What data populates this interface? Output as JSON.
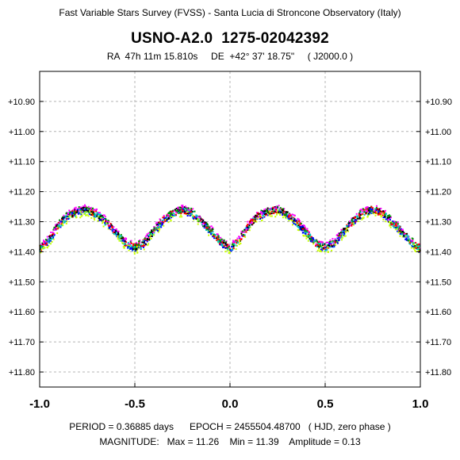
{
  "header": {
    "survey": "Fast Variable Stars Survey (FVSS) - Santa Lucia di Stroncone Observatory (Italy)",
    "star_name": "USNO-A2.0  1275-02042392",
    "coordinates": "RA  47h 11m 15.810s     DE  +42° 37' 18.75\"     ( J2000.0 )"
  },
  "footer": {
    "period_line": "PERIOD = 0.36885 days      EPOCH = 2455504.48700   ( HJD, zero phase )",
    "magnitude_line": "MAGNITUDE:   Max = 11.26    Min = 11.39    Amplitude = 0.13"
  },
  "chart_data": {
    "type": "scatter",
    "title": "USNO-A2.0  1275-02042392",
    "xlabel": "",
    "ylabel": "",
    "xlim": [
      -1.0,
      1.0
    ],
    "ylim": [
      10.8,
      11.85
    ],
    "y_inverted": true,
    "x_ticks": [
      "-1.0",
      "-0.5",
      "0.0",
      "0.5",
      "1.0"
    ],
    "y_ticks": [
      "+10.90",
      "+11.00",
      "+11.10",
      "+11.20",
      "+11.30",
      "+11.40",
      "+11.50",
      "+11.60",
      "+11.70",
      "+11.80"
    ],
    "grid": true,
    "period_days": 0.36885,
    "epoch_hjd": 2455504.487,
    "mag_max": 11.26,
    "mag_min": 11.39,
    "amplitude": 0.13,
    "colors": [
      "#ff0000",
      "#ff00ff",
      "#0000ff",
      "#00c8c8",
      "#c8ff00",
      "#009600",
      "#000000"
    ],
    "phased_curve": {
      "x": [
        -1.0,
        -0.95,
        -0.9,
        -0.85,
        -0.8,
        -0.75,
        -0.7,
        -0.65,
        -0.6,
        -0.55,
        -0.5,
        -0.45,
        -0.4,
        -0.35,
        -0.3,
        -0.25,
        -0.2,
        -0.15,
        -0.1,
        -0.05,
        0.0,
        0.05,
        0.1,
        0.15,
        0.2,
        0.25,
        0.3,
        0.35,
        0.4,
        0.45,
        0.5,
        0.55,
        0.6,
        0.65,
        0.7,
        0.75,
        0.8,
        0.85,
        0.9,
        0.95,
        1.0
      ],
      "y": [
        11.39,
        11.36,
        11.31,
        11.28,
        11.265,
        11.26,
        11.275,
        11.3,
        11.335,
        11.37,
        11.385,
        11.37,
        11.33,
        11.295,
        11.27,
        11.26,
        11.27,
        11.3,
        11.33,
        11.365,
        11.39,
        11.36,
        11.31,
        11.28,
        11.265,
        11.26,
        11.275,
        11.3,
        11.335,
        11.37,
        11.385,
        11.37,
        11.33,
        11.295,
        11.27,
        11.26,
        11.27,
        11.3,
        11.33,
        11.365,
        11.39
      ]
    }
  }
}
